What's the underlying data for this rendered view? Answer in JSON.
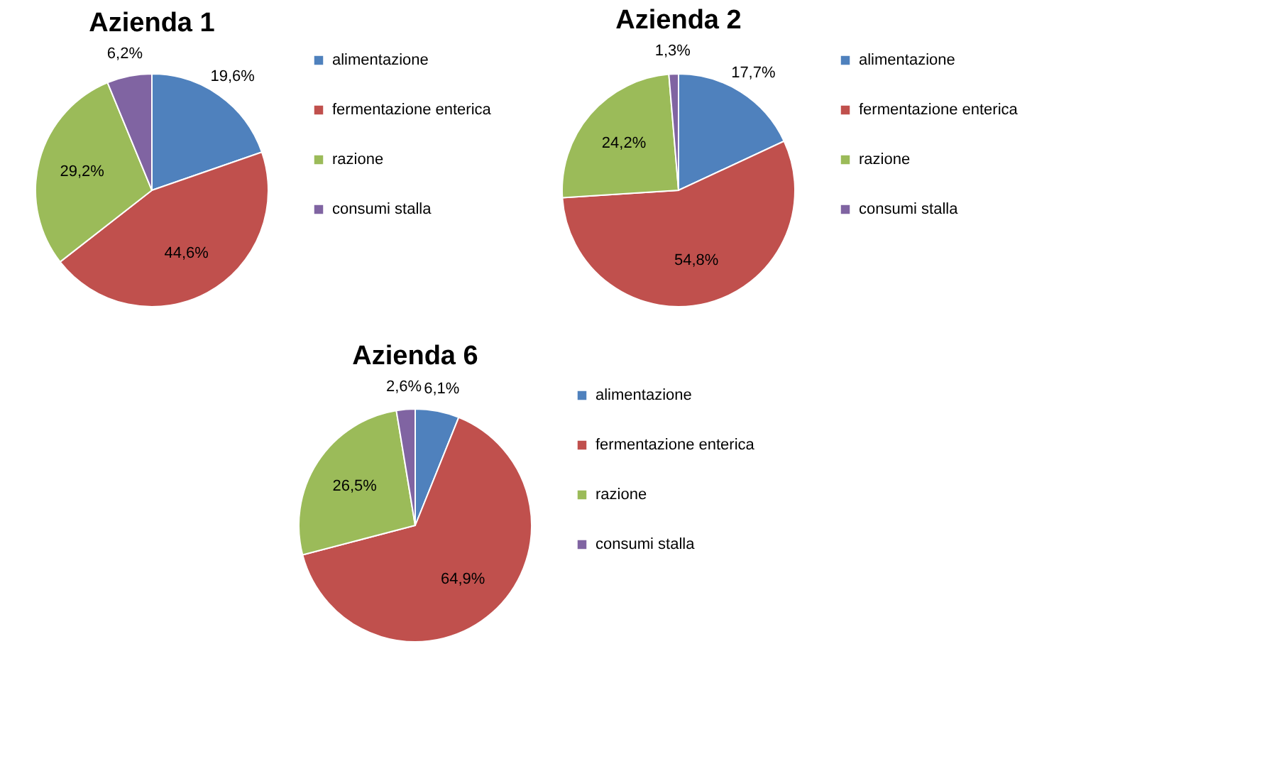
{
  "chart_data": [
    {
      "type": "pie",
      "title": "Azienda 1",
      "categories": [
        "alimentazione",
        "fermentazione enterica",
        "razione",
        "consumi stalla"
      ],
      "values": [
        19.6,
        44.6,
        29.2,
        6.2
      ],
      "value_labels": [
        "19,6%",
        "44,6%",
        "29,2%",
        "6,2%"
      ],
      "colors": [
        "#4f81bd",
        "#c0504d",
        "#9bbb59",
        "#8064a2"
      ],
      "legend": "right"
    },
    {
      "type": "pie",
      "title": "Azienda 2",
      "categories": [
        "alimentazione",
        "fermentazione enterica",
        "razione",
        "consumi stalla"
      ],
      "values": [
        17.7,
        54.8,
        24.2,
        1.3
      ],
      "value_labels": [
        "17,7%",
        "54,8%",
        "24,2%",
        "1,3%"
      ],
      "colors": [
        "#4f81bd",
        "#c0504d",
        "#9bbb59",
        "#8064a2"
      ],
      "legend": "right"
    },
    {
      "type": "pie",
      "title": "Azienda 6",
      "categories": [
        "alimentazione",
        "fermentazione enterica",
        "razione",
        "consumi stalla"
      ],
      "values": [
        6.1,
        64.9,
        26.5,
        2.6
      ],
      "value_labels": [
        "6,1%",
        "64,9%",
        "26,5%",
        "2,6%"
      ],
      "colors": [
        "#4f81bd",
        "#c0504d",
        "#9bbb59",
        "#8064a2"
      ],
      "legend": "right"
    }
  ]
}
